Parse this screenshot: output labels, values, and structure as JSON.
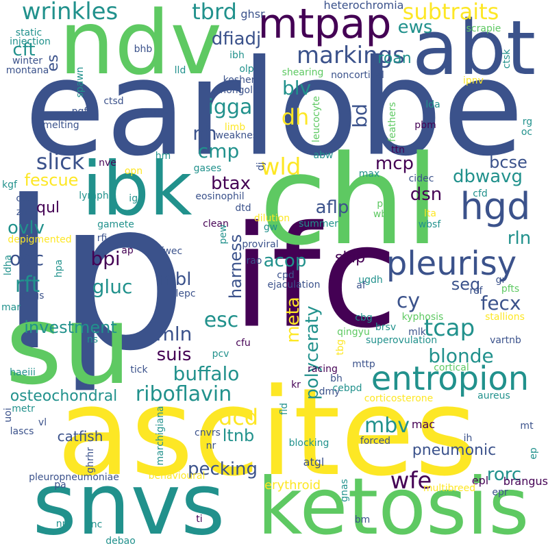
{
  "word_cloud": {
    "background": "#ffffff",
    "palette": [
      "#440154",
      "#3b528b",
      "#21918c",
      "#5ec962",
      "#fde725"
    ],
    "words": [
      {
        "text": "earlobe",
        "color": "#3b528b"
      },
      {
        "text": "lp",
        "color": "#3b528b"
      },
      {
        "text": "ifc",
        "color": "#440154"
      },
      {
        "text": "ascites",
        "color": "#fde725"
      },
      {
        "text": "chl",
        "color": "#5ec962"
      },
      {
        "text": "su",
        "color": "#5ec962"
      },
      {
        "text": "ndv",
        "color": "#5ec962"
      },
      {
        "text": "abt",
        "color": "#3b528b"
      },
      {
        "text": "snvs",
        "color": "#21918c"
      },
      {
        "text": "ketosis",
        "color": "#5ec962"
      },
      {
        "text": "ibk",
        "color": "#21918c"
      },
      {
        "text": "entropion",
        "color": "#21918c"
      },
      {
        "text": "pleurisy",
        "color": "#3b528b"
      },
      {
        "text": "mtpap",
        "color": "#440154"
      },
      {
        "text": "hgd",
        "color": "#3b528b"
      },
      {
        "text": "wrinkles",
        "color": "#21918c"
      },
      {
        "text": "subtraits",
        "color": "#fde725"
      },
      {
        "text": "tbrd",
        "color": "#21918c"
      },
      {
        "text": "markings",
        "color": "#3b528b"
      },
      {
        "text": "dfiadj",
        "color": "#3b528b"
      },
      {
        "text": "cft",
        "color": "#21918c"
      },
      {
        "text": "ews",
        "color": "#21918c"
      },
      {
        "text": "roan",
        "color": "#21918c"
      },
      {
        "text": "es",
        "color": "#3b528b"
      },
      {
        "text": "blv",
        "color": "#21918c"
      },
      {
        "text": "bd",
        "color": "#3b528b"
      },
      {
        "text": "dh",
        "color": "#fde725"
      },
      {
        "text": "igga",
        "color": "#21918c"
      },
      {
        "text": "nh",
        "color": "#3b528b"
      },
      {
        "text": "cmp",
        "color": "#21918c"
      },
      {
        "text": "wld",
        "color": "#fde725"
      },
      {
        "text": "slick",
        "color": "#3b528b"
      },
      {
        "text": "fescue",
        "color": "#fde725"
      },
      {
        "text": "mcp",
        "color": "#440154"
      },
      {
        "text": "bcse",
        "color": "#3b528b"
      },
      {
        "text": "dbwavg",
        "color": "#21918c"
      },
      {
        "text": "btax",
        "color": "#440154"
      },
      {
        "text": "aflp",
        "color": "#3b528b"
      },
      {
        "text": "dsn",
        "color": "#440154"
      },
      {
        "text": "qul",
        "color": "#440154"
      },
      {
        "text": "ovlv",
        "color": "#21918c"
      },
      {
        "text": "rln",
        "color": "#21918c"
      },
      {
        "text": "odc",
        "color": "#3b528b"
      },
      {
        "text": "bpi",
        "color": "#440154"
      },
      {
        "text": "acop",
        "color": "#21918c"
      },
      {
        "text": "mbl",
        "color": "#3b528b"
      },
      {
        "text": "rft",
        "color": "#21918c"
      },
      {
        "text": "gluc",
        "color": "#21918c"
      },
      {
        "text": "harness",
        "color": "#3b528b"
      },
      {
        "text": "skip",
        "color": "#440154"
      },
      {
        "text": "seq",
        "color": "#3b528b"
      },
      {
        "text": "cy",
        "color": "#3b528b"
      },
      {
        "text": "fecx",
        "color": "#3b528b"
      },
      {
        "text": "tcap",
        "color": "#21918c"
      },
      {
        "text": "esc",
        "color": "#21918c"
      },
      {
        "text": "investment",
        "color": "#21918c"
      },
      {
        "text": "meta",
        "color": "#fde725"
      },
      {
        "text": "mln",
        "color": "#3b528b"
      },
      {
        "text": "suis",
        "color": "#440154"
      },
      {
        "text": "polyceraty",
        "color": "#21918c"
      },
      {
        "text": "blonde",
        "color": "#21918c"
      },
      {
        "text": "buffalo",
        "color": "#21918c"
      },
      {
        "text": "riboflavin",
        "color": "#21918c"
      },
      {
        "text": "osteochondral",
        "color": "#21918c"
      },
      {
        "text": "dcd",
        "color": "#fde725"
      },
      {
        "text": "ltnb",
        "color": "#21918c"
      },
      {
        "text": "mbv",
        "color": "#21918c"
      },
      {
        "text": "pneumonic",
        "color": "#3b528b"
      },
      {
        "text": "catfish",
        "color": "#3b528b"
      },
      {
        "text": "pecking",
        "color": "#3b528b"
      },
      {
        "text": "wfe",
        "color": "#440154"
      },
      {
        "text": "rorc",
        "color": "#21918c"
      },
      {
        "text": "brangus",
        "color": "#440154"
      },
      {
        "text": "erythroid",
        "color": "#fde725"
      },
      {
        "text": "atgl",
        "color": "#3b528b"
      },
      {
        "text": "mac",
        "color": "#440154"
      },
      {
        "text": "epl",
        "color": "#440154"
      },
      {
        "text": "mt",
        "color": "#3b528b"
      },
      {
        "text": "ghsr",
        "color": "#3b528b"
      },
      {
        "text": "heterochromia",
        "color": "#3b528b"
      },
      {
        "text": "static",
        "color": "#21918c"
      },
      {
        "text": "injection",
        "color": "#21918c"
      },
      {
        "text": "bhb",
        "color": "#3b528b"
      },
      {
        "text": "winter",
        "color": "#3b528b"
      },
      {
        "text": "montana",
        "color": "#3b528b"
      },
      {
        "text": "ibh",
        "color": "#21918c"
      },
      {
        "text": "olp",
        "color": "#21918c"
      },
      {
        "text": "kosher",
        "color": "#3b528b"
      },
      {
        "text": "shearing",
        "color": "#5ec962"
      },
      {
        "text": "noncortical",
        "color": "#3b528b"
      },
      {
        "text": "scrapie",
        "color": "#5ec962"
      },
      {
        "text": "ctsk",
        "color": "#21918c"
      },
      {
        "text": "ipnv",
        "color": "#fde725"
      },
      {
        "text": "spawn",
        "color": "#21918c"
      },
      {
        "text": "lld",
        "color": "#21918c"
      },
      {
        "text": "mongolia",
        "color": "#3b528b"
      },
      {
        "text": "pgf",
        "color": "#3b528b"
      },
      {
        "text": "ctsd",
        "color": "#3b528b"
      },
      {
        "text": "prme",
        "color": "#3b528b"
      },
      {
        "text": "melting",
        "color": "#3b528b"
      },
      {
        "text": "limb",
        "color": "#fde725"
      },
      {
        "text": "weakness",
        "color": "#3b528b"
      },
      {
        "text": "leucocyte",
        "color": "#5ec962"
      },
      {
        "text": "feathers",
        "color": "#5ec962"
      },
      {
        "text": "lda",
        "color": "#21918c"
      },
      {
        "text": "rg",
        "color": "#21918c"
      },
      {
        "text": "oc",
        "color": "#21918c"
      },
      {
        "text": "pbm",
        "color": "#440154"
      },
      {
        "text": "ttn",
        "color": "#440154"
      },
      {
        "text": "abw",
        "color": "#21918c"
      },
      {
        "text": "hm",
        "color": "#21918c"
      },
      {
        "text": "nve",
        "color": "#440154"
      },
      {
        "text": "gases",
        "color": "#21918c"
      },
      {
        "text": "dj",
        "color": "#3b528b"
      },
      {
        "text": "max",
        "color": "#21918c"
      },
      {
        "text": "cidec",
        "color": "#3b528b"
      },
      {
        "text": "opn",
        "color": "#fde725"
      },
      {
        "text": "kgf",
        "color": "#21918c"
      },
      {
        "text": "cddr",
        "color": "#3b528b"
      },
      {
        "text": "lymph",
        "color": "#21918c"
      },
      {
        "text": "ige",
        "color": "#21918c"
      },
      {
        "text": "eosinophil",
        "color": "#3b528b"
      },
      {
        "text": "cfd",
        "color": "#21918c"
      },
      {
        "text": "zn",
        "color": "#3b528b"
      },
      {
        "text": "dtd",
        "color": "#3b528b"
      },
      {
        "text": "dilution",
        "color": "#fde725"
      },
      {
        "text": "prp",
        "color": "#5ec962"
      },
      {
        "text": "wb",
        "color": "#5ec962"
      },
      {
        "text": "lta",
        "color": "#fde725"
      },
      {
        "text": "gamete",
        "color": "#21918c"
      },
      {
        "text": "clean",
        "color": "#440154"
      },
      {
        "text": "gw",
        "color": "#21918c"
      },
      {
        "text": "summer",
        "color": "#21918c"
      },
      {
        "text": "wbsf",
        "color": "#21918c"
      },
      {
        "text": "rfi",
        "color": "#3b528b"
      },
      {
        "text": "depigmented",
        "color": "#fde725"
      },
      {
        "text": "pew",
        "color": "#21918c"
      },
      {
        "text": "proviral",
        "color": "#3b528b"
      },
      {
        "text": "ap",
        "color": "#440154"
      },
      {
        "text": "fwec",
        "color": "#3b528b"
      },
      {
        "text": "rao",
        "color": "#3b528b"
      },
      {
        "text": "cpd",
        "color": "#3b528b"
      },
      {
        "text": "ugdh",
        "color": "#21918c"
      },
      {
        "text": "gr",
        "color": "#3b528b"
      },
      {
        "text": "pfts",
        "color": "#5ec962"
      },
      {
        "text": "hpa",
        "color": "#21918c"
      },
      {
        "text": "ldha",
        "color": "#21918c"
      },
      {
        "text": "pcgs",
        "color": "#3b528b"
      },
      {
        "text": "lepc",
        "color": "#3b528b"
      },
      {
        "text": "ejaculation",
        "color": "#3b528b"
      },
      {
        "text": "af",
        "color": "#3b528b"
      },
      {
        "text": "ref",
        "color": "#3b528b"
      },
      {
        "text": "mar",
        "color": "#21918c"
      },
      {
        "text": "cbg",
        "color": "#21918c"
      },
      {
        "text": "kyphosis",
        "color": "#5ec962"
      },
      {
        "text": "stallions",
        "color": "#fde725"
      },
      {
        "text": "qingyu",
        "color": "#5ec962"
      },
      {
        "text": "brsv",
        "color": "#21918c"
      },
      {
        "text": "mlk",
        "color": "#3b528b"
      },
      {
        "text": "ns",
        "color": "#21918c"
      },
      {
        "text": "cfu",
        "color": "#440154"
      },
      {
        "text": "tbg",
        "color": "#fde725"
      },
      {
        "text": "superovulation",
        "color": "#21918c"
      },
      {
        "text": "vartnb",
        "color": "#3b528b"
      },
      {
        "text": "pcv",
        "color": "#21918c"
      },
      {
        "text": "mttp",
        "color": "#3b528b"
      },
      {
        "text": "haeiii",
        "color": "#21918c"
      },
      {
        "text": "tick",
        "color": "#3b528b"
      },
      {
        "text": "racing",
        "color": "#440154"
      },
      {
        "text": "cortical",
        "color": "#5ec962"
      },
      {
        "text": "bh",
        "color": "#3b528b"
      },
      {
        "text": "cebpd",
        "color": "#21918c"
      },
      {
        "text": "dmy",
        "color": "#3b528b"
      },
      {
        "text": "fld",
        "color": "#21918c"
      },
      {
        "text": "kr",
        "color": "#440154"
      },
      {
        "text": "corticosterone",
        "color": "#fde725"
      },
      {
        "text": "aureus",
        "color": "#21918c"
      },
      {
        "text": "uoi",
        "color": "#3b528b"
      },
      {
        "text": "metr",
        "color": "#21918c"
      },
      {
        "text": "lascs",
        "color": "#3b528b"
      },
      {
        "text": "vl",
        "color": "#3b528b"
      },
      {
        "text": "marchigiana",
        "color": "#21918c"
      },
      {
        "text": "ghrhr",
        "color": "#3b528b"
      },
      {
        "text": "cnvrs",
        "color": "#3b528b"
      },
      {
        "text": "nr",
        "color": "#3b528b"
      },
      {
        "text": "blocking",
        "color": "#21918c"
      },
      {
        "text": "forced",
        "color": "#3b528b"
      },
      {
        "text": "ih",
        "color": "#3b528b"
      },
      {
        "text": "ep",
        "color": "#21918c"
      },
      {
        "text": "pleuropneumoniae",
        "color": "#3b528b"
      },
      {
        "text": "behavioural",
        "color": "#fde725"
      },
      {
        "text": "pa",
        "color": "#3b528b"
      },
      {
        "text": "gnas",
        "color": "#21918c"
      },
      {
        "text": "multibreed",
        "color": "#fde725"
      },
      {
        "text": "epr",
        "color": "#3b528b"
      },
      {
        "text": "ti",
        "color": "#440154"
      },
      {
        "text": "nm",
        "color": "#21918c"
      },
      {
        "text": "knc",
        "color": "#21918c"
      },
      {
        "text": "bm",
        "color": "#3b528b"
      },
      {
        "text": "debao",
        "color": "#21918c"
      }
    ]
  }
}
